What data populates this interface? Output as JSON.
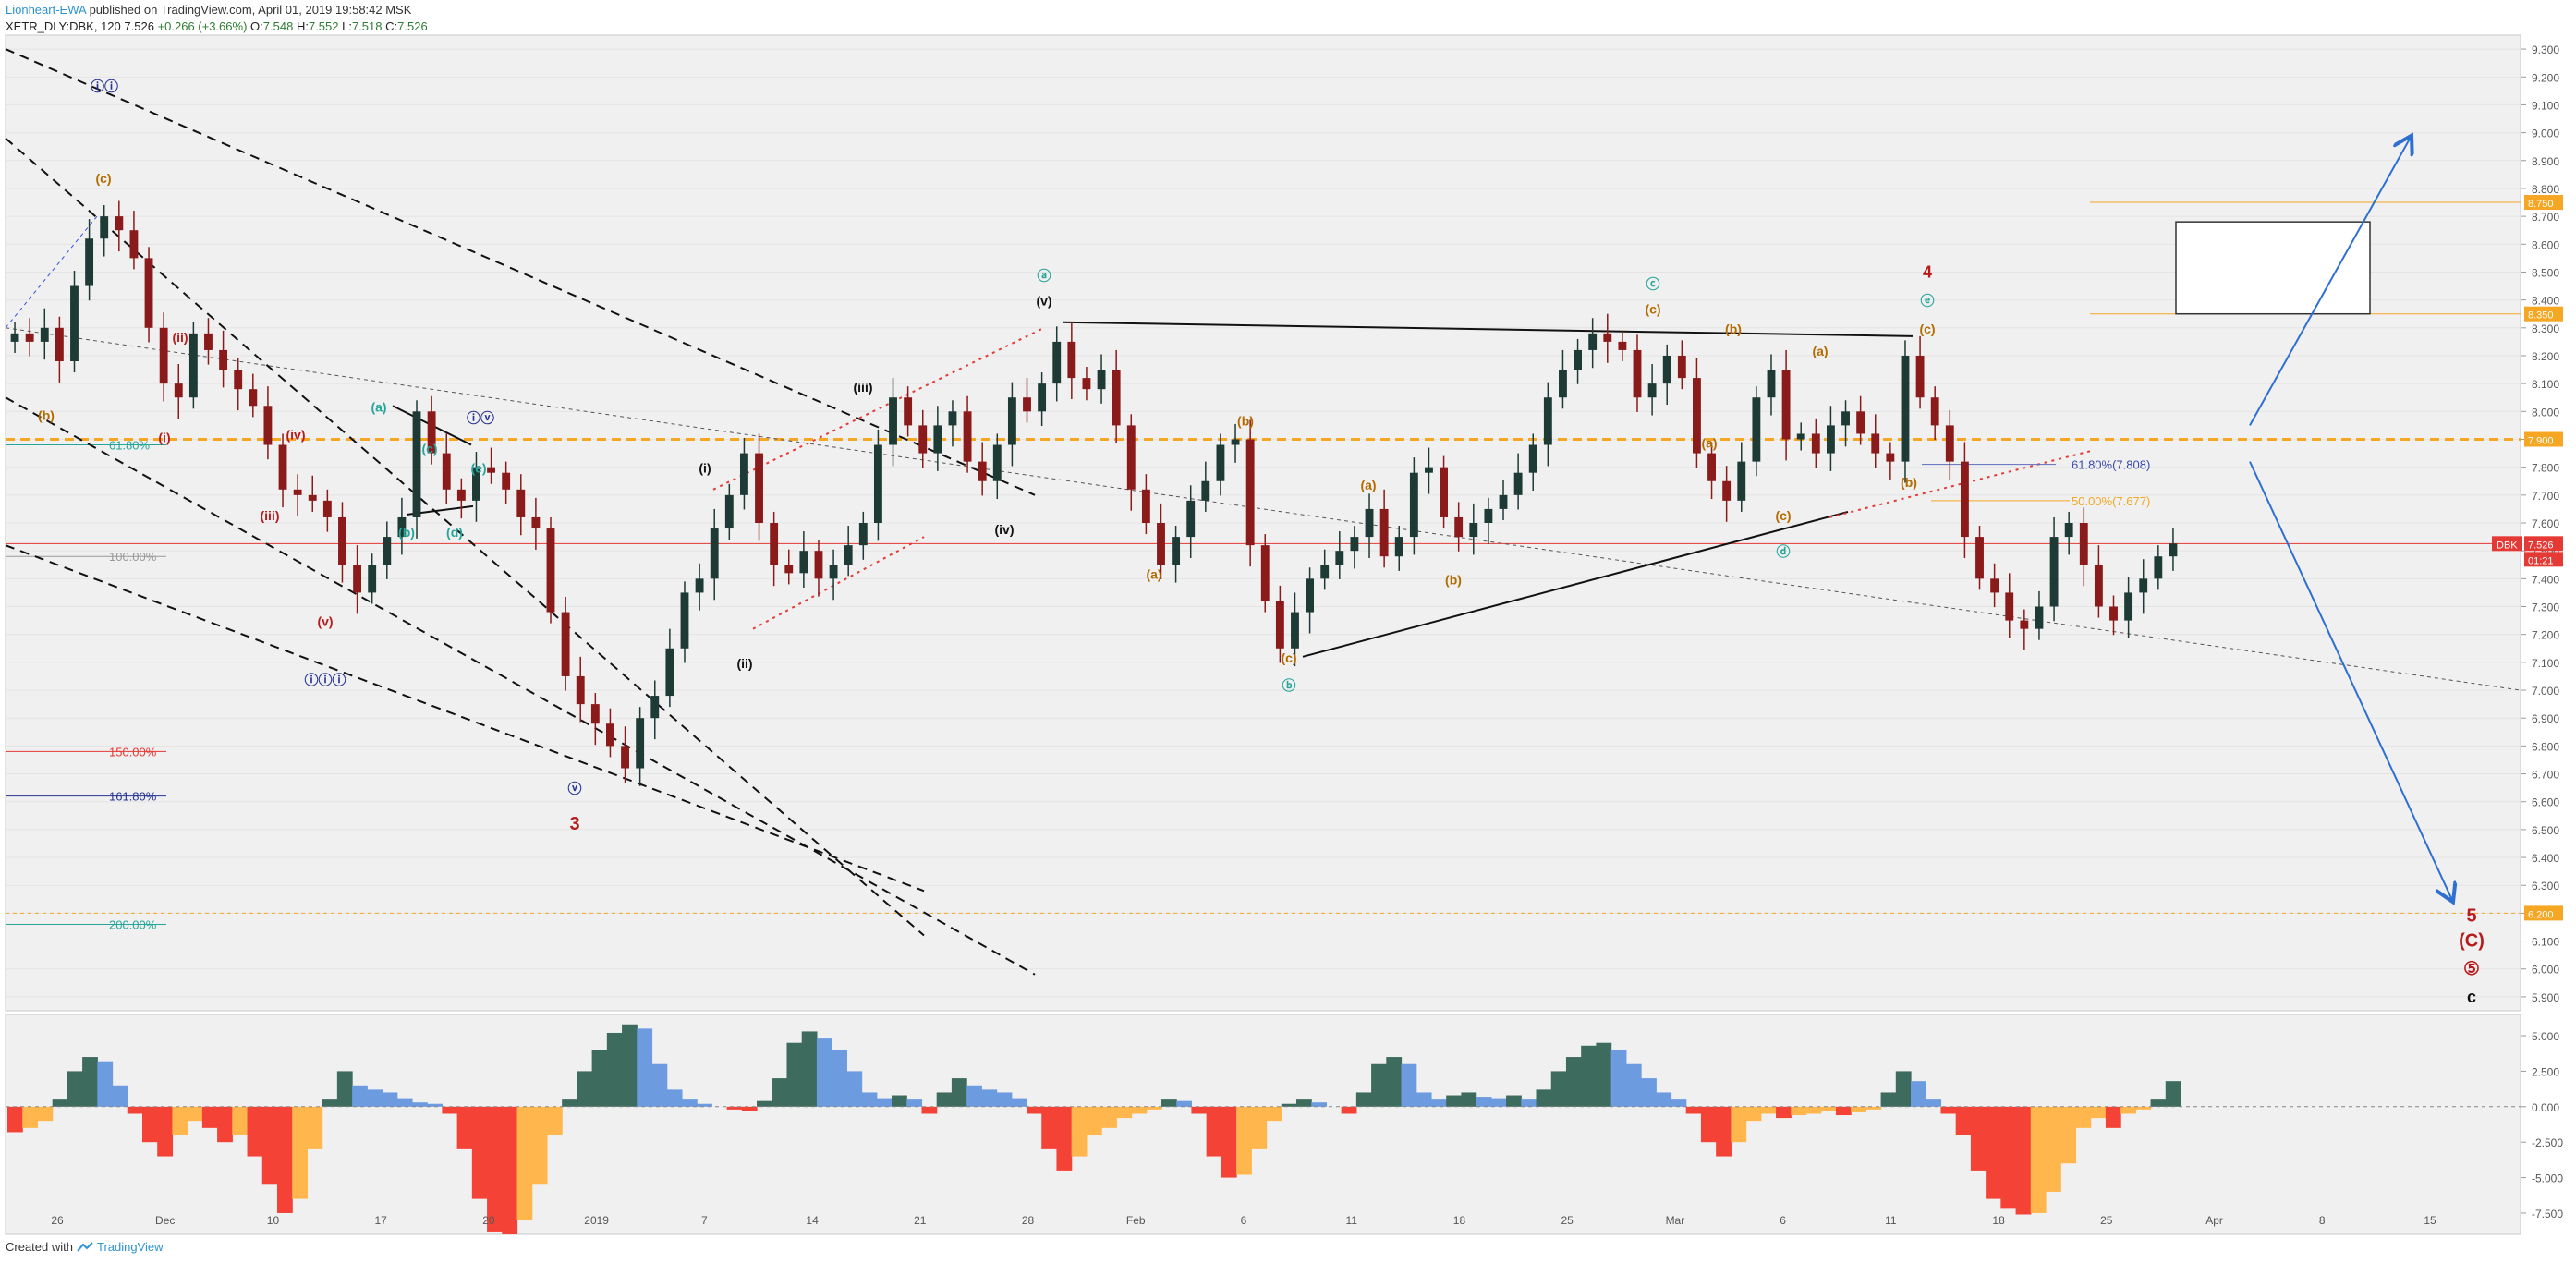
{
  "header": {
    "author": "Lionheart-EWA",
    "published": "published on TradingView.com, April 01, 2019 19:58:42 MSK",
    "symbol": "XETR_DLY:DBK, 120",
    "last": "7.526",
    "change": "+0.266 (+3.66%)",
    "o_label": "O:",
    "o": "7.548",
    "h_label": "H:",
    "h": "7.552",
    "l_label": "L:",
    "l": "7.518",
    "c_label": "C:",
    "c": "7.526"
  },
  "footer": {
    "created_with": "Created with",
    "brand": "TradingView"
  },
  "colors": {
    "bull": "#1e3a35",
    "bear": "#8b1a1a",
    "orange": "#f5a623",
    "red": "#e53935",
    "blue_wave": "#283593",
    "teal_wave": "#26a69a",
    "brown_wave": "#b36b00",
    "osc_green": "#3d6b5e",
    "osc_blue": "#6c9be0",
    "osc_red": "#f44336",
    "osc_orange": "#ffb74d"
  },
  "chart_data": [
    {
      "type": "line",
      "title": "",
      "x_ticks": [
        "26",
        "Dec",
        "10",
        "17",
        "20",
        "2019",
        "7",
        "14",
        "21",
        "28",
        "Feb",
        "6",
        "11",
        "18",
        "25",
        "Mar",
        "6",
        "11",
        "18",
        "25",
        "Apr",
        "8",
        "15"
      ],
      "y_ticks": [
        "9.300",
        "9.200",
        "9.100",
        "9.000",
        "8.900",
        "8.800",
        "8.700",
        "8.600",
        "8.500",
        "8.400",
        "8.300",
        "8.200",
        "8.100",
        "8.000",
        "7.900",
        "7.800",
        "7.700",
        "7.600",
        "7.500",
        "7.400",
        "7.300",
        "7.200",
        "7.100",
        "7.000",
        "6.900",
        "6.800",
        "6.700",
        "6.600",
        "6.500",
        "6.400",
        "6.300",
        "6.200",
        "6.100",
        "6.000",
        "5.900"
      ],
      "ylim": [
        5.85,
        9.35
      ],
      "series": [
        {
          "name": "",
          "values": [
            8.28,
            8.25,
            8.3,
            8.18,
            8.45,
            8.62,
            8.7,
            8.65,
            8.55,
            8.3,
            8.1,
            8.05,
            8.28,
            8.22,
            8.15,
            8.08,
            8.02,
            7.88,
            7.72,
            7.7,
            7.68,
            7.62,
            7.45,
            7.35,
            7.45,
            7.55,
            7.62,
            8.0,
            7.85,
            7.72,
            7.68,
            7.8,
            7.78,
            7.72,
            7.62,
            7.58,
            7.28,
            7.05,
            6.95,
            6.88,
            6.8,
            6.72,
            6.9,
            6.98,
            7.15,
            7.35,
            7.4,
            7.58,
            7.7,
            7.85,
            7.6,
            7.45,
            7.42,
            7.5,
            7.4,
            7.45,
            7.52,
            7.6,
            7.88,
            8.05,
            7.95,
            7.85,
            7.95,
            8.0,
            7.82,
            7.75,
            7.88,
            8.05,
            8.0,
            8.1,
            8.25,
            8.12,
            8.08,
            8.15,
            7.95,
            7.72,
            7.6,
            7.45,
            7.55,
            7.68,
            7.75,
            7.88,
            7.9,
            7.52,
            7.32,
            7.15,
            7.28,
            7.4,
            7.45,
            7.5,
            7.55,
            7.65,
            7.48,
            7.55,
            7.78,
            7.8,
            7.62,
            7.55,
            7.6,
            7.65,
            7.7,
            7.78,
            7.88,
            8.05,
            8.15,
            8.22,
            8.28,
            8.25,
            8.22,
            8.05,
            8.1,
            8.2,
            8.12,
            7.85,
            7.75,
            7.68,
            7.82,
            8.05,
            8.15,
            7.9,
            7.92,
            7.85,
            7.95,
            8.0,
            7.92,
            7.85,
            7.82,
            8.2,
            8.05,
            7.95,
            7.82,
            7.55,
            7.4,
            7.35,
            7.25,
            7.22,
            7.3,
            7.55,
            7.6,
            7.45,
            7.3,
            7.25,
            7.35,
            7.4,
            7.48,
            7.526
          ]
        }
      ],
      "annotations": {
        "last_price_tag": "7.526",
        "symbol_tag": "DBK",
        "countdown_tag": "01:21",
        "level_tags": [
          "8.750",
          "8.350",
          "7.900",
          "6.200"
        ],
        "fib_left": [
          "61.80%",
          "100.00%",
          "150.00%",
          "161.80%",
          "200.00%"
        ],
        "fib_right": [
          "61.80%(7.808)",
          "50.00%(7.677)"
        ],
        "waves": [
          "ⓘⓘ",
          "(c)",
          "(b)",
          "(ii)",
          "(i)",
          "(iii)",
          "(iv)",
          "(v)",
          "ⓘⓘⓘ",
          "(a)",
          "(c)",
          "(b)",
          "(d)",
          "(e)",
          "ⓘⓥ",
          "ⓥ",
          "3",
          "(i)",
          "(ii)",
          "(iii)",
          "(iv)",
          "(v)",
          "ⓐ",
          "(a)",
          "(b)",
          "(c)",
          "ⓑ",
          "(a)",
          "(b)",
          "(c)",
          "ⓒ",
          "(b)",
          "(a)",
          "(c)",
          "ⓓ",
          "(a)",
          "(b)",
          "(c)",
          "4",
          "ⓔ",
          "(b)",
          "5",
          "(C)",
          "⑤",
          "c"
        ]
      }
    },
    {
      "type": "area",
      "title": "",
      "y_ticks": [
        "5.000",
        "2.500",
        "0.000",
        "-2.500",
        "-5.000",
        "-7.500"
      ],
      "ylim": [
        -9.0,
        6.5
      ],
      "series": [
        {
          "name": "",
          "values": [
            -1.8,
            -1.5,
            -1.0,
            0.5,
            2.5,
            3.5,
            3.2,
            1.5,
            -0.5,
            -2.5,
            -3.5,
            -2.0,
            -1.0,
            -1.5,
            -2.5,
            -2.0,
            -3.5,
            -5.5,
            -7.5,
            -6.5,
            -3.0,
            0.5,
            2.5,
            1.5,
            1.2,
            1.0,
            0.6,
            0.3,
            0.2,
            -0.5,
            -3.0,
            -6.5,
            -8.8,
            -9.0,
            -8.0,
            -5.5,
            -2.0,
            0.5,
            2.5,
            4.0,
            5.2,
            5.8,
            5.5,
            3.0,
            1.2,
            0.5,
            0.2,
            0.0,
            -0.2,
            -0.3,
            0.4,
            2.0,
            4.5,
            5.3,
            4.8,
            4.0,
            2.5,
            1.0,
            0.6,
            0.8,
            0.5,
            -0.5,
            1.0,
            2.0,
            1.5,
            1.2,
            1.0,
            0.6,
            -0.5,
            -3.0,
            -4.5,
            -3.5,
            -2.0,
            -1.5,
            -0.8,
            -0.5,
            -0.2,
            0.5,
            0.4,
            -0.5,
            -3.5,
            -5.0,
            -4.8,
            -3.0,
            -1.0,
            0.2,
            0.5,
            0.3,
            0.0,
            -0.5,
            1.0,
            3.0,
            3.5,
            3.0,
            1.0,
            0.5,
            0.8,
            1.0,
            0.7,
            0.6,
            0.8,
            0.5,
            1.2,
            2.5,
            3.5,
            4.3,
            4.5,
            4.0,
            3.0,
            2.0,
            1.0,
            0.5,
            -0.5,
            -2.5,
            -3.5,
            -2.5,
            -1.0,
            -0.5,
            -0.8,
            -0.6,
            -0.5,
            -0.3,
            -0.6,
            -0.4,
            -0.2,
            1.0,
            2.5,
            1.8,
            0.5,
            -0.5,
            -2.0,
            -4.5,
            -6.5,
            -7.2,
            -7.6,
            -7.5,
            -6.0,
            -4.0,
            -1.5,
            -0.8,
            -1.5,
            -0.5,
            -0.2,
            0.5,
            1.8
          ]
        }
      ]
    }
  ]
}
